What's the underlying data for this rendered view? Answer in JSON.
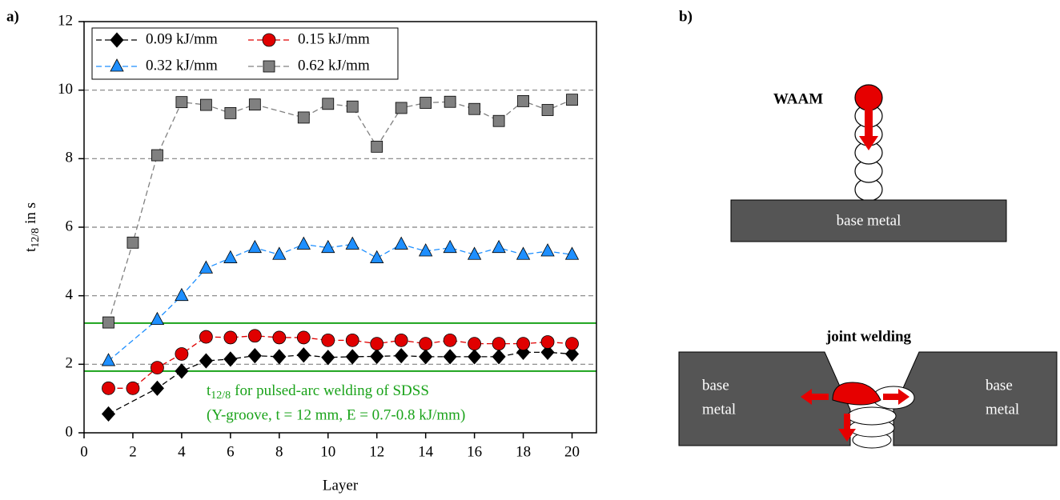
{
  "chart_data": {
    "type": "line",
    "panel_label": "a)",
    "xlabel": "Layer",
    "ylabel": {
      "symbol": "t",
      "subscript": "12/8",
      "text": "in s"
    },
    "xlim": [
      0,
      21
    ],
    "ylim": [
      0,
      12
    ],
    "xticks": [
      0,
      2,
      4,
      6,
      8,
      10,
      12,
      14,
      16,
      18,
      20
    ],
    "yticks": [
      0,
      2,
      4,
      6,
      8,
      10,
      12
    ],
    "grid": true,
    "grid_values": [
      2,
      4,
      6,
      8,
      10
    ],
    "grid_color": "#808080",
    "reference_lines": [
      {
        "value": 1.8,
        "color": "#1aa31a"
      },
      {
        "value": 3.2,
        "color": "#1aa31a"
      }
    ],
    "annotation": {
      "symbol": "t",
      "subscript": "12/8",
      "text": "for pulsed-arc welding of SDSS",
      "line2": "(Y-groove, t = 12 mm, E = 0.7-0.8 kJ/mm)",
      "color": "#1aa31a"
    },
    "legend": "upper left",
    "series": [
      {
        "name": "0.09 kJ/mm",
        "color": "#000000",
        "marker": "diamond",
        "x": [
          1,
          3,
          4,
          5,
          6,
          7,
          8,
          9,
          10,
          11,
          12,
          13,
          14,
          15,
          16,
          17,
          18,
          19,
          20
        ],
        "values": [
          0.55,
          1.3,
          1.8,
          2.1,
          2.15,
          2.25,
          2.22,
          2.27,
          2.2,
          2.22,
          2.23,
          2.25,
          2.22,
          2.22,
          2.22,
          2.22,
          2.35,
          2.35,
          2.3
        ]
      },
      {
        "name": "0.15 kJ/mm",
        "color": "#e00000",
        "marker": "circle",
        "x": [
          1,
          2,
          3,
          4,
          5,
          6,
          7,
          8,
          9,
          10,
          11,
          12,
          13,
          14,
          15,
          16,
          17,
          18,
          19,
          20
        ],
        "values": [
          1.3,
          1.3,
          1.9,
          2.3,
          2.8,
          2.78,
          2.83,
          2.78,
          2.78,
          2.7,
          2.7,
          2.6,
          2.7,
          2.6,
          2.7,
          2.6,
          2.6,
          2.6,
          2.65,
          2.6
        ]
      },
      {
        "name": "0.32 kJ/mm",
        "color": "#1e8fff",
        "marker": "triangle",
        "x": [
          1,
          3,
          4,
          5,
          6,
          7,
          8,
          9,
          10,
          11,
          12,
          13,
          14,
          15,
          16,
          17,
          18,
          19,
          20
        ],
        "values": [
          2.1,
          3.3,
          4.0,
          4.8,
          5.1,
          5.4,
          5.2,
          5.5,
          5.4,
          5.5,
          5.1,
          5.5,
          5.3,
          5.4,
          5.2,
          5.4,
          5.2,
          5.3,
          5.2
        ]
      },
      {
        "name": "0.62 kJ/mm",
        "color": "#808080",
        "marker": "square",
        "x": [
          1,
          2,
          3,
          4,
          5,
          6,
          7,
          9,
          10,
          11,
          12,
          13,
          14,
          15,
          16,
          17,
          18,
          19,
          20
        ],
        "values": [
          3.22,
          5.55,
          8.1,
          9.65,
          9.57,
          9.33,
          9.58,
          9.2,
          9.6,
          9.52,
          8.35,
          9.48,
          9.63,
          9.66,
          9.45,
          9.1,
          9.68,
          9.42,
          9.72
        ]
      }
    ]
  },
  "diagram": {
    "panel_label": "b)",
    "waam_label": "WAAM",
    "base_metal": "base metal",
    "joint_label": "joint welding",
    "left_plate": [
      "base",
      "metal"
    ],
    "right_plate": [
      "base",
      "metal"
    ]
  }
}
